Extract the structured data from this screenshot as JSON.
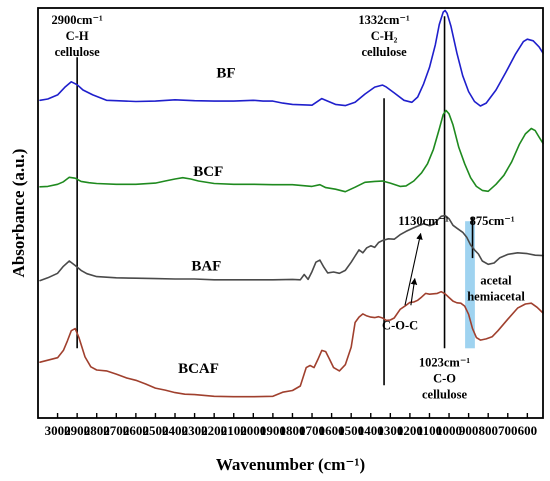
{
  "chart_data": {
    "type": "line",
    "title": "",
    "xlabel": "Wavenumber (cm⁻¹)",
    "ylabel": "Absorbance (a.u.)",
    "x_reversed": true,
    "xlim": [
      3100,
      520
    ],
    "ylim": [
      0,
      100
    ],
    "grid": false,
    "legend": "none",
    "x_ticks": [
      "3000",
      "2900",
      "2800",
      "2700",
      "2600",
      "2500",
      "2400",
      "2300",
      "2200",
      "2100",
      "2000",
      "1900",
      "1800",
      "1700",
      "1600",
      "1500",
      "1400",
      "1300",
      "1200",
      "1100",
      "1000",
      "900",
      "800",
      "700",
      "600"
    ],
    "y_ticks": [],
    "series": [
      {
        "name": "BF",
        "color": "#1f1fcc",
        "points": [
          [
            3090,
            77.5
          ],
          [
            3050,
            77.8
          ],
          [
            3000,
            78.8
          ],
          [
            2960,
            80.8
          ],
          [
            2930,
            82
          ],
          [
            2900,
            81.3
          ],
          [
            2870,
            80
          ],
          [
            2820,
            78.8
          ],
          [
            2750,
            77.5
          ],
          [
            2700,
            77.4
          ],
          [
            2600,
            77.2
          ],
          [
            2500,
            77.3
          ],
          [
            2400,
            77.6
          ],
          [
            2300,
            77.4
          ],
          [
            2200,
            77.3
          ],
          [
            2100,
            77.3
          ],
          [
            2000,
            77.5
          ],
          [
            1950,
            77.3
          ],
          [
            1900,
            77.3
          ],
          [
            1850,
            76.8
          ],
          [
            1800,
            76.5
          ],
          [
            1750,
            76.4
          ],
          [
            1700,
            76.3
          ],
          [
            1650,
            77.9
          ],
          [
            1620,
            77.3
          ],
          [
            1580,
            76.5
          ],
          [
            1530,
            76.2
          ],
          [
            1480,
            77
          ],
          [
            1430,
            79
          ],
          [
            1380,
            80.7
          ],
          [
            1340,
            81.2
          ],
          [
            1320,
            80.7
          ],
          [
            1280,
            79.3
          ],
          [
            1230,
            77.5
          ],
          [
            1190,
            77
          ],
          [
            1160,
            78.3
          ],
          [
            1130,
            81.5
          ],
          [
            1100,
            85.5
          ],
          [
            1070,
            91
          ],
          [
            1050,
            96
          ],
          [
            1030,
            99
          ],
          [
            1020,
            99.4
          ],
          [
            1010,
            98.7
          ],
          [
            990,
            95.5
          ],
          [
            960,
            89
          ],
          [
            930,
            83.5
          ],
          [
            900,
            79.6
          ],
          [
            870,
            77.2
          ],
          [
            840,
            76.1
          ],
          [
            810,
            76.8
          ],
          [
            760,
            80
          ],
          [
            710,
            84.3
          ],
          [
            660,
            88.8
          ],
          [
            620,
            91.8
          ],
          [
            600,
            92.4
          ],
          [
            570,
            92
          ],
          [
            540,
            90.5
          ],
          [
            520,
            89
          ]
        ]
      },
      {
        "name": "BCF",
        "color": "#1f8a1f",
        "points": [
          [
            3090,
            56.4
          ],
          [
            3050,
            56.5
          ],
          [
            3000,
            57
          ],
          [
            2970,
            57.6
          ],
          [
            2940,
            58.7
          ],
          [
            2910,
            58.5
          ],
          [
            2880,
            57.7
          ],
          [
            2840,
            57.4
          ],
          [
            2800,
            57.2
          ],
          [
            2700,
            57
          ],
          [
            2600,
            57
          ],
          [
            2500,
            57.3
          ],
          [
            2450,
            57.8
          ],
          [
            2400,
            58.3
          ],
          [
            2360,
            58.6
          ],
          [
            2320,
            58.3
          ],
          [
            2280,
            57.8
          ],
          [
            2200,
            57.2
          ],
          [
            2100,
            57
          ],
          [
            2000,
            57
          ],
          [
            1900,
            56.9
          ],
          [
            1800,
            56.9
          ],
          [
            1700,
            56.5
          ],
          [
            1660,
            56.9
          ],
          [
            1630,
            56.2
          ],
          [
            1580,
            55.8
          ],
          [
            1530,
            55.2
          ],
          [
            1480,
            56.3
          ],
          [
            1430,
            57.5
          ],
          [
            1380,
            57.7
          ],
          [
            1340,
            57.8
          ],
          [
            1300,
            57.3
          ],
          [
            1250,
            56.5
          ],
          [
            1220,
            56.6
          ],
          [
            1180,
            57.8
          ],
          [
            1140,
            59.8
          ],
          [
            1110,
            62
          ],
          [
            1080,
            65.5
          ],
          [
            1050,
            70.5
          ],
          [
            1030,
            74
          ],
          [
            1015,
            75
          ],
          [
            1000,
            74.2
          ],
          [
            980,
            71.5
          ],
          [
            950,
            66
          ],
          [
            920,
            62
          ],
          [
            890,
            58.6
          ],
          [
            860,
            56.5
          ],
          [
            830,
            55.5
          ],
          [
            800,
            55.3
          ],
          [
            760,
            57
          ],
          [
            720,
            59.2
          ],
          [
            680,
            62.5
          ],
          [
            640,
            66.8
          ],
          [
            610,
            69.3
          ],
          [
            580,
            70.6
          ],
          [
            560,
            70.1
          ],
          [
            540,
            68.5
          ],
          [
            520,
            67
          ]
        ]
      },
      {
        "name": "BAF",
        "color": "#4a4a4a",
        "points": [
          [
            3090,
            33.5
          ],
          [
            3050,
            34.2
          ],
          [
            3000,
            35.3
          ],
          [
            2970,
            37
          ],
          [
            2940,
            38.3
          ],
          [
            2910,
            37.2
          ],
          [
            2880,
            36
          ],
          [
            2850,
            35.2
          ],
          [
            2800,
            34.5
          ],
          [
            2700,
            34.2
          ],
          [
            2600,
            34.1
          ],
          [
            2500,
            34
          ],
          [
            2400,
            33.9
          ],
          [
            2300,
            33.9
          ],
          [
            2200,
            33.7
          ],
          [
            2100,
            33.7
          ],
          [
            2000,
            33.7
          ],
          [
            1900,
            33.7
          ],
          [
            1800,
            33.8
          ],
          [
            1760,
            33.7
          ],
          [
            1740,
            35
          ],
          [
            1720,
            33.8
          ],
          [
            1700,
            35.7
          ],
          [
            1680,
            38
          ],
          [
            1660,
            38.5
          ],
          [
            1640,
            36.8
          ],
          [
            1620,
            35.4
          ],
          [
            1590,
            35.6
          ],
          [
            1560,
            35.3
          ],
          [
            1530,
            36
          ],
          [
            1500,
            38
          ],
          [
            1480,
            39.5
          ],
          [
            1460,
            41
          ],
          [
            1440,
            40.3
          ],
          [
            1420,
            41.5
          ],
          [
            1400,
            42
          ],
          [
            1380,
            41.6
          ],
          [
            1360,
            42.8
          ],
          [
            1340,
            43.3
          ],
          [
            1310,
            43.7
          ],
          [
            1280,
            43.6
          ],
          [
            1250,
            44.7
          ],
          [
            1220,
            45.5
          ],
          [
            1190,
            46.2
          ],
          [
            1160,
            46.8
          ],
          [
            1130,
            47.4
          ],
          [
            1100,
            46.9
          ],
          [
            1080,
            47.2
          ],
          [
            1060,
            48.2
          ],
          [
            1040,
            49.2
          ],
          [
            1020,
            49.4
          ],
          [
            1000,
            48.6
          ],
          [
            980,
            47
          ],
          [
            960,
            46.3
          ],
          [
            930,
            45.3
          ],
          [
            910,
            44.1
          ],
          [
            890,
            42.2
          ],
          [
            870,
            41
          ],
          [
            850,
            40
          ],
          [
            830,
            38.3
          ],
          [
            800,
            37.5
          ],
          [
            770,
            37.8
          ],
          [
            740,
            39.1
          ],
          [
            700,
            39.9
          ],
          [
            650,
            40.3
          ],
          [
            600,
            40.1
          ],
          [
            560,
            39.7
          ],
          [
            520,
            39.6
          ]
        ]
      },
      {
        "name": "BCAF",
        "color": "#a0402e",
        "points": [
          [
            3090,
            13.6
          ],
          [
            3050,
            14.1
          ],
          [
            3000,
            14.7
          ],
          [
            2970,
            16.5
          ],
          [
            2950,
            18.8
          ],
          [
            2930,
            21.3
          ],
          [
            2910,
            21.8
          ],
          [
            2890,
            19.5
          ],
          [
            2860,
            14.9
          ],
          [
            2830,
            12.5
          ],
          [
            2800,
            11.7
          ],
          [
            2750,
            11.5
          ],
          [
            2700,
            10.7
          ],
          [
            2650,
            9.8
          ],
          [
            2600,
            9.2
          ],
          [
            2550,
            8.3
          ],
          [
            2500,
            7.3
          ],
          [
            2450,
            6.8
          ],
          [
            2400,
            6.2
          ],
          [
            2350,
            5.8
          ],
          [
            2300,
            5.7
          ],
          [
            2200,
            5.3
          ],
          [
            2100,
            5.2
          ],
          [
            2000,
            5.2
          ],
          [
            1900,
            5.3
          ],
          [
            1850,
            6.3
          ],
          [
            1800,
            6.7
          ],
          [
            1760,
            7.8
          ],
          [
            1730,
            12.3
          ],
          [
            1710,
            12.8
          ],
          [
            1690,
            12.3
          ],
          [
            1670,
            14.3
          ],
          [
            1650,
            16.5
          ],
          [
            1630,
            16.2
          ],
          [
            1610,
            14.3
          ],
          [
            1590,
            12.3
          ],
          [
            1560,
            11.5
          ],
          [
            1530,
            13
          ],
          [
            1500,
            17.3
          ],
          [
            1480,
            23.3
          ],
          [
            1460,
            24.6
          ],
          [
            1440,
            25.4
          ],
          [
            1420,
            24.9
          ],
          [
            1400,
            24.6
          ],
          [
            1380,
            24.5
          ],
          [
            1360,
            24.7
          ],
          [
            1340,
            24.4
          ],
          [
            1320,
            23.8
          ],
          [
            1300,
            23.9
          ],
          [
            1280,
            24.4
          ],
          [
            1250,
            26.5
          ],
          [
            1220,
            27.5
          ],
          [
            1200,
            28.2
          ],
          [
            1180,
            28.3
          ],
          [
            1160,
            28.7
          ],
          [
            1140,
            29.5
          ],
          [
            1120,
            30.4
          ],
          [
            1100,
            30.2
          ],
          [
            1080,
            30.3
          ],
          [
            1060,
            30.4
          ],
          [
            1040,
            30.8
          ],
          [
            1020,
            30.3
          ],
          [
            1000,
            29.4
          ],
          [
            980,
            28.5
          ],
          [
            960,
            28.1
          ],
          [
            940,
            28
          ],
          [
            920,
            27.3
          ],
          [
            900,
            25.3
          ],
          [
            880,
            21.8
          ],
          [
            860,
            19.6
          ],
          [
            840,
            19
          ],
          [
            810,
            19.3
          ],
          [
            780,
            19.8
          ],
          [
            750,
            21.3
          ],
          [
            700,
            24.1
          ],
          [
            650,
            26.8
          ],
          [
            610,
            27.8
          ],
          [
            580,
            28
          ],
          [
            550,
            27
          ],
          [
            520,
            25.6
          ]
        ]
      }
    ],
    "series_labels": [
      {
        "text": "BF",
        "x": 2140,
        "y": 83
      },
      {
        "text": "BCF",
        "x": 2230,
        "y": 59
      },
      {
        "text": "BAF",
        "x": 2240,
        "y": 36
      },
      {
        "text": "BCAF",
        "x": 2280,
        "y": 11
      }
    ],
    "vertical_lines": [
      {
        "x": 2900,
        "y_from": 17,
        "y_to": 88
      },
      {
        "x": 1332,
        "y_from": 8,
        "y_to": 78
      },
      {
        "x": 1023,
        "y_from": 17,
        "y_to": 98
      },
      {
        "x": 880,
        "y_from": 39,
        "y_to": 49
      }
    ],
    "highlight_band": {
      "x_from": 918,
      "x_to": 868,
      "y_from": 17,
      "y_to": 48,
      "color": "#9fd3f0"
    },
    "annotations": [
      {
        "lines": [
          "2900cm⁻¹",
          "C-H",
          "cellulose"
        ],
        "x": 2900,
        "y": 98.5
      },
      {
        "lines": [
          "1332cm⁻¹",
          "C-H₂",
          "cellulose"
        ],
        "x": 1332,
        "y": 98.5
      },
      {
        "lines": [
          "1130cm⁻¹"
        ],
        "x": 1130,
        "y": 49.5
      },
      {
        "lines": [
          "875cm⁻¹"
        ],
        "x": 780,
        "y": 49.5
      },
      {
        "lines": [
          "acetal",
          "hemiacetal"
        ],
        "x": 760,
        "y": 35
      },
      {
        "lines": [
          "C-O-C"
        ],
        "x": 1250,
        "y": 24
      },
      {
        "lines": [
          "1023cm⁻¹",
          "C-O",
          "cellulose"
        ],
        "x": 1023,
        "y": 15
      }
    ],
    "arrows": [
      {
        "from": [
          1225,
          27.5
        ],
        "to": [
          1145,
          45
        ]
      },
      {
        "from": [
          1195,
          27.5
        ],
        "to": [
          1175,
          34
        ]
      }
    ]
  }
}
